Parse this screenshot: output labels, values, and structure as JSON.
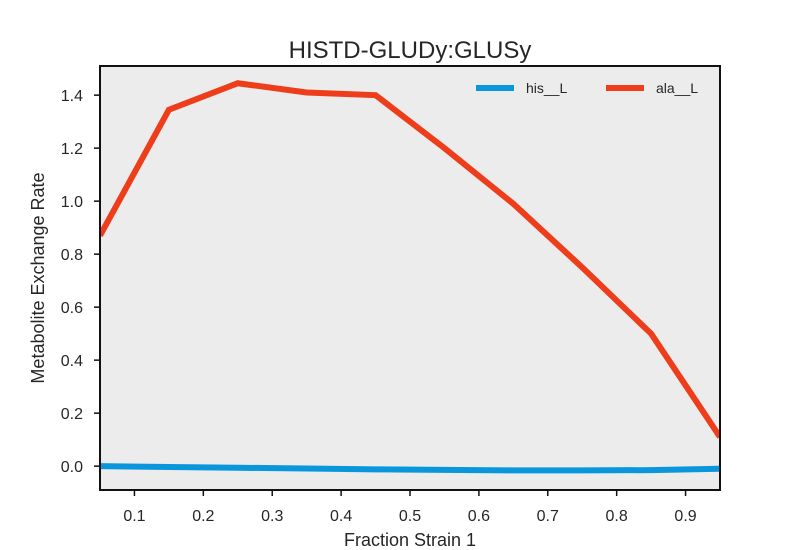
{
  "chart_data": {
    "type": "line",
    "title": "HISTD-GLUDy:GLUSy",
    "xlabel": "Fraction Strain 1",
    "ylabel": "Metabolite Exchange Rate",
    "xlim": [
      0.05,
      0.95
    ],
    "ylim": [
      -0.09,
      1.51
    ],
    "xticks": [
      "0.1",
      "0.2",
      "0.3",
      "0.4",
      "0.5",
      "0.6",
      "0.7",
      "0.8",
      "0.9"
    ],
    "yticks": [
      "0.0",
      "0.2",
      "0.4",
      "0.6",
      "0.8",
      "1.0",
      "1.2",
      "1.4"
    ],
    "grid": false,
    "legend_position": "top-right",
    "background": "#ececec",
    "x": [
      0.05,
      0.15,
      0.25,
      0.35,
      0.45,
      0.55,
      0.65,
      0.75,
      0.85,
      0.95
    ],
    "series": [
      {
        "name": "his__L",
        "color": "#0a96dc",
        "values": [
          0.0,
          -0.003,
          -0.006,
          -0.009,
          -0.012,
          -0.014,
          -0.016,
          -0.016,
          -0.015,
          -0.01
        ]
      },
      {
        "name": "ala__L",
        "color": "#ee3d1a",
        "values": [
          0.87,
          1.345,
          1.445,
          1.41,
          1.4,
          1.2,
          0.99,
          0.75,
          0.5,
          0.11
        ]
      }
    ]
  }
}
